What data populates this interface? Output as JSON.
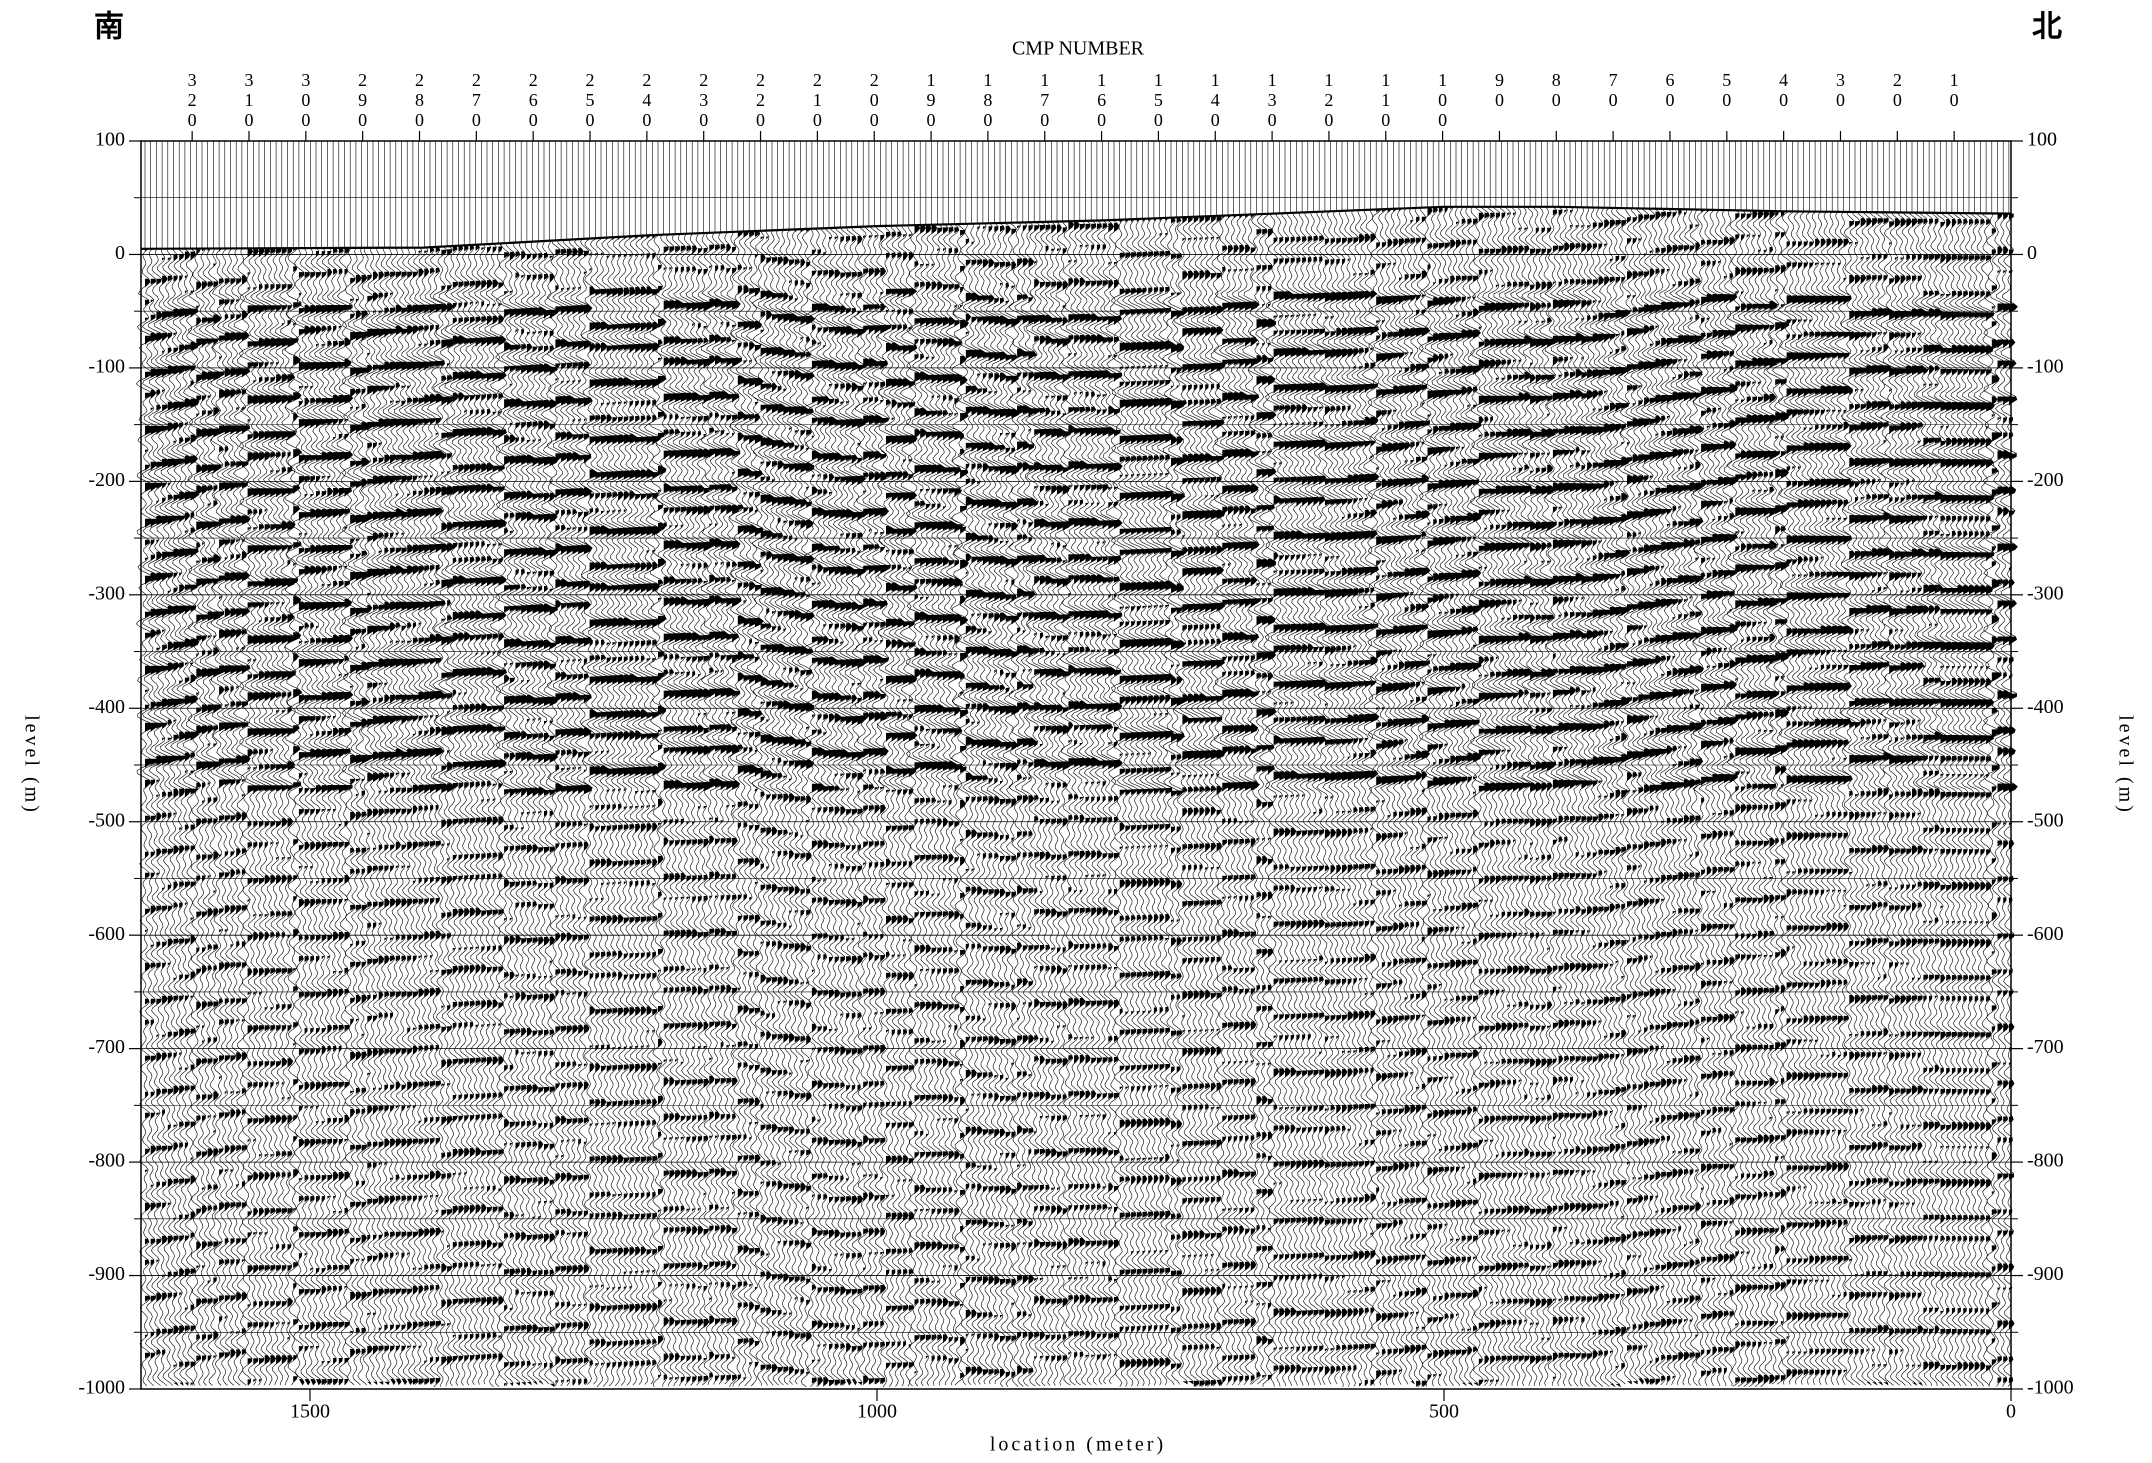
{
  "chart_data": {
    "type": "seismic",
    "corner_labels": [
      "南",
      "北"
    ],
    "x2_label": "CMP NUMBER",
    "xlabel": "location (meter)",
    "ylabel": "level (m)",
    "xlim": [
      1649,
      0
    ],
    "xticks": [
      1500,
      1000,
      500,
      0
    ],
    "x2lim": [
      329,
      0
    ],
    "x2ticks": [
      320,
      310,
      300,
      290,
      280,
      270,
      260,
      250,
      240,
      230,
      220,
      210,
      200,
      190,
      180,
      170,
      160,
      150,
      140,
      130,
      120,
      110,
      100,
      90,
      80,
      70,
      60,
      50,
      40,
      30,
      20,
      10
    ],
    "ylim": [
      -1000,
      100
    ],
    "yticks": [
      -1000,
      -900,
      -800,
      -700,
      -600,
      -500,
      -400,
      -300,
      -200,
      -100,
      0,
      100
    ],
    "y_minor_ticks": [
      -950,
      -850,
      -750,
      -650,
      -550,
      -450,
      -350,
      -250,
      -150,
      -50,
      50
    ],
    "surface": {
      "x": [
        1649,
        1400,
        1200,
        1000,
        800,
        600,
        500,
        400,
        200,
        0
      ],
      "values": [
        5,
        6,
        17,
        25,
        30,
        38,
        42,
        42,
        38,
        36
      ]
    }
  }
}
